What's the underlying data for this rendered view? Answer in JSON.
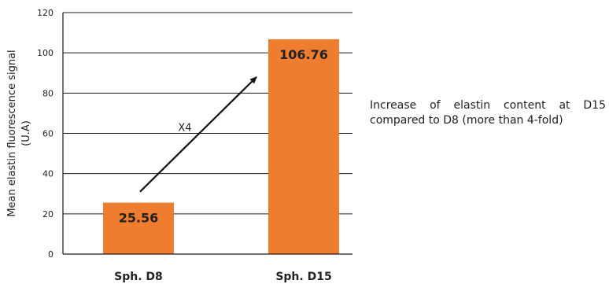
{
  "chart_data": {
    "type": "bar",
    "categories": [
      "Sph. D8",
      "Sph. D15"
    ],
    "values": [
      25.56,
      106.76
    ],
    "data_labels": [
      "25.56",
      "106.76"
    ],
    "title": "",
    "xlabel": "",
    "ylabel": "Mean elastin fluorescence signal (U.A)",
    "ylabel_lines": [
      "Mean elastin fluorescence signal",
      "(U.A)"
    ],
    "ylim": [
      0,
      120
    ],
    "yticks": [
      0,
      20,
      40,
      60,
      80,
      100,
      120
    ],
    "grid": true,
    "bar_color": "#ee7d2f",
    "arrow": {
      "label": "X4",
      "from_value": 31,
      "to_value": 88
    }
  },
  "annotation": {
    "text": "Increase of elastin content at D15 compared to D8 (more than 4-fold)"
  }
}
